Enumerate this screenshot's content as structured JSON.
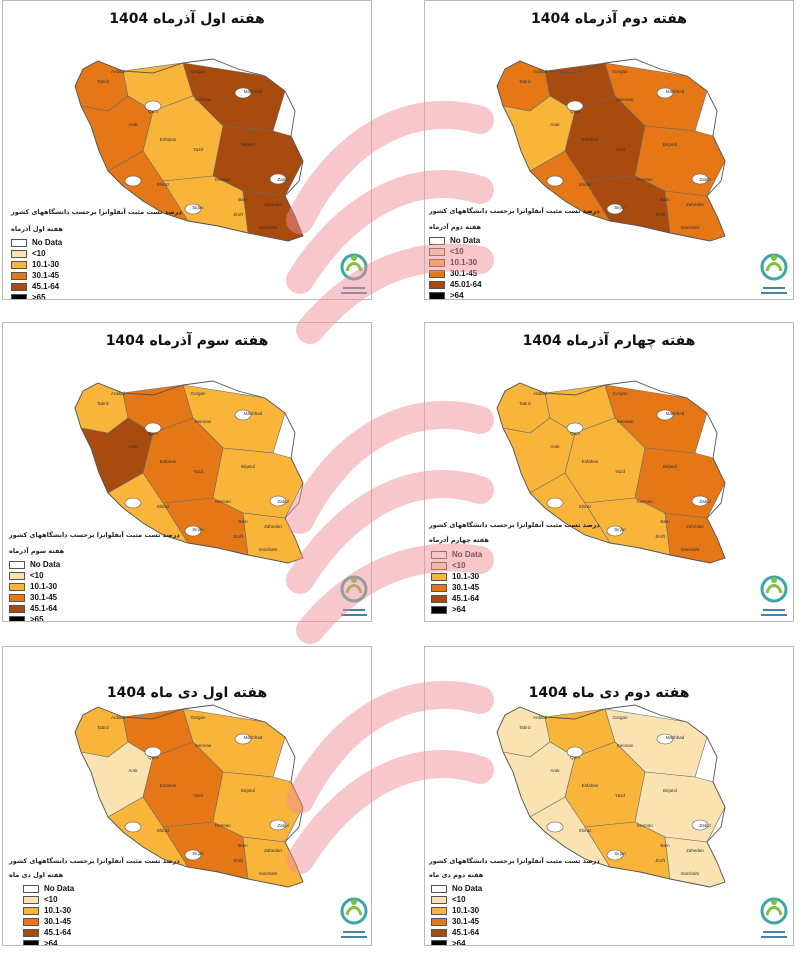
{
  "panels": [
    {
      "title": "هفته اول آذرماه 1404",
      "caption": "درصد تست مثبت آنفلوانزا برحسب دانشگاههای کشور",
      "legend_title": "هفته اول آذرماه",
      "legend": [
        {
          "label": "No Data",
          "color": "#ffffff"
        },
        {
          "label": "<10",
          "color": "#fbe3b1"
        },
        {
          "label": "10.1-30",
          "color": "#f8b53a"
        },
        {
          "label": "30.1-45",
          "color": "#e57716"
        },
        {
          "label": "45.1-64",
          "color": "#a94a0f"
        },
        {
          "label": ">65",
          "color": "#000000"
        }
      ],
      "palette": [
        "#e57716",
        "#f8b53a",
        "#a94a0f",
        "#e57716",
        "#f8b53a",
        "#a94a0f"
      ]
    },
    {
      "title": "هفته دوم آذرماه 1404",
      "caption": "درصد تست مثبت آنفلوانزا برحسب دانشگاههای کشور",
      "legend_title": "هفته دوم آذرماه",
      "legend": [
        {
          "label": "No Data",
          "color": "#ffffff"
        },
        {
          "label": "<10",
          "color": "#fbe3b1"
        },
        {
          "label": "10.1-30",
          "color": "#f8b53a"
        },
        {
          "label": "30.1-45",
          "color": "#e57716"
        },
        {
          "label": "45.01-64",
          "color": "#a94a0f"
        },
        {
          "label": ">64",
          "color": "#000000"
        }
      ],
      "palette": [
        "#e57716",
        "#a94a0f",
        "#e57716",
        "#f8b53a",
        "#a94a0f",
        "#e57716"
      ]
    },
    {
      "title": "هفته سوم آذرماه 1404",
      "caption": "درصد تست مثبت آنفلوانزا برحسب دانشگاههای کشور",
      "legend_title": "هفته سوم آذرماه",
      "legend": [
        {
          "label": "No Data",
          "color": "#ffffff"
        },
        {
          "label": "<10",
          "color": "#fbe3b1"
        },
        {
          "label": "10.1-30",
          "color": "#f8b53a"
        },
        {
          "label": "30.1-45",
          "color": "#e57716"
        },
        {
          "label": "45.1-64",
          "color": "#a94a0f"
        },
        {
          "label": ">65",
          "color": "#000000"
        }
      ],
      "palette": [
        "#f8b53a",
        "#e57716",
        "#f8b53a",
        "#a94a0f",
        "#e57716",
        "#f8b53a"
      ]
    },
    {
      "title": "هفته چهارم آذرماه 1404",
      "caption": "درصد تست مثبت آنفلوانزا برحسب دانشگاههای کشور",
      "legend_title": "هفته چهارم آذرماه",
      "legend": [
        {
          "label": "No Data",
          "color": "#ffffff"
        },
        {
          "label": "<10",
          "color": "#fbe3b1"
        },
        {
          "label": "10.1-30",
          "color": "#f8b53a"
        },
        {
          "label": "30.1-45",
          "color": "#e57716"
        },
        {
          "label": "45.1-64",
          "color": "#a94a0f"
        },
        {
          "label": ">64",
          "color": "#000000"
        }
      ],
      "palette": [
        "#f8b53a",
        "#f8b53a",
        "#e57716",
        "#f8b53a",
        "#f8b53a",
        "#e57716"
      ]
    },
    {
      "title": "هفته اول دی ماه 1404",
      "caption": "درصد تست مثبت آنفلوانزا برحسب دانشگاههای کشور",
      "legend_title": "هفته اول دی ماه",
      "legend": [
        {
          "label": "No Data",
          "color": "#ffffff"
        },
        {
          "label": "<10",
          "color": "#fbe3b1"
        },
        {
          "label": "10.1-30",
          "color": "#f8b53a"
        },
        {
          "label": "30.1-45",
          "color": "#e57716"
        },
        {
          "label": "45.1-64",
          "color": "#a94a0f"
        },
        {
          "label": ">64",
          "color": "#000000"
        }
      ],
      "palette": [
        "#f8b53a",
        "#e57716",
        "#f8b53a",
        "#fbe3b1",
        "#e57716",
        "#f8b53a"
      ]
    },
    {
      "title": "هفته دوم دی ماه 1404",
      "caption": "درصد تست مثبت آنفلوانزا برحسب دانشگاههای کشور",
      "legend_title": "هفته دوم دی ماه",
      "legend": [
        {
          "label": "No Data",
          "color": "#ffffff"
        },
        {
          "label": "<10",
          "color": "#fbe3b1"
        },
        {
          "label": "10.1-30",
          "color": "#f8b53a"
        },
        {
          "label": "30.1-45",
          "color": "#e57716"
        },
        {
          "label": "45.1-64",
          "color": "#a94a0f"
        },
        {
          "label": ">64",
          "color": "#000000"
        }
      ],
      "palette": [
        "#fbe3b1",
        "#f8b53a",
        "#fbe3b1",
        "#fbe3b1",
        "#f8b53a",
        "#fbe3b1"
      ]
    }
  ],
  "city_labels": [
    "Tabriz",
    "Ardabil",
    "Gorgan",
    "Mashhad",
    "Semnan",
    "Qom",
    "Arak",
    "Esfahan",
    "Yazd",
    "Birjand",
    "Kerman",
    "Zabol",
    "Shiraz",
    "Bam",
    "Zahedan",
    "Jiroft",
    "Iranshahr",
    "Sirjan"
  ],
  "logo_icon": "health-logo-icon",
  "watermark_icon": "broadcaster-watermark-icon"
}
